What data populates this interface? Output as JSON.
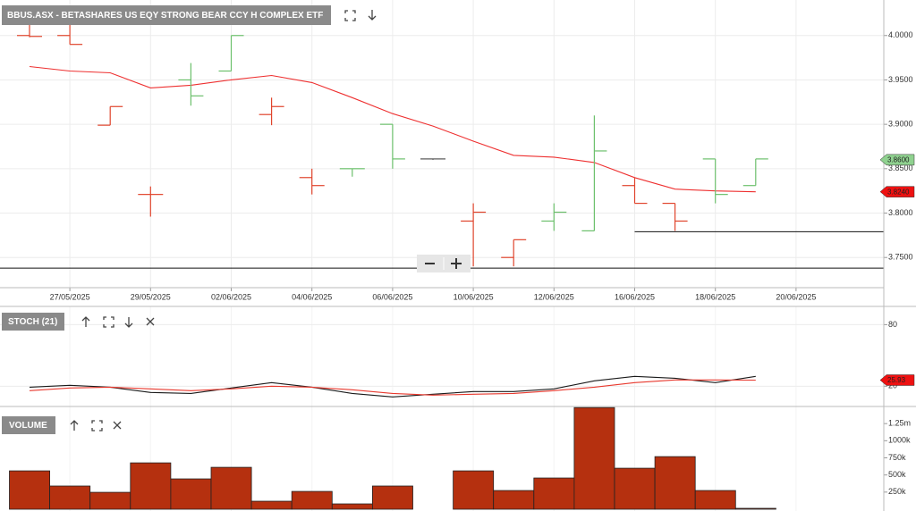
{
  "chart_data": [
    {
      "type": "ohlc",
      "title": "BBUS.ASX - BETASHARES US EQY STRONG BEAR CCY H COMPLEX ETF",
      "categories": [
        null,
        "27/05/2025",
        null,
        "29/05/2025",
        null,
        "02/06/2025",
        null,
        "04/06/2025",
        null,
        "06/06/2025",
        null,
        "10/06/2025",
        null,
        "12/06/2025",
        null,
        "16/06/2025",
        null,
        "18/06/2025",
        null,
        "20/06/2025"
      ],
      "open": [
        4.0,
        4.0,
        3.899,
        3.821,
        3.95,
        3.96,
        3.911,
        3.84,
        3.85,
        3.9,
        3.861,
        3.791,
        3.75,
        3.791,
        3.78,
        3.831,
        3.811,
        3.861,
        3.831,
        null
      ],
      "high": [
        4.012,
        4.012,
        3.92,
        3.83,
        3.969,
        4.0,
        3.93,
        3.85,
        3.85,
        3.9,
        3.861,
        3.811,
        3.77,
        3.811,
        3.91,
        3.84,
        3.811,
        3.861,
        3.861,
        null
      ],
      "low": [
        3.998,
        3.99,
        3.899,
        3.796,
        3.921,
        3.96,
        3.899,
        3.821,
        3.841,
        3.85,
        3.861,
        3.74,
        3.74,
        3.78,
        3.78,
        3.811,
        3.78,
        3.811,
        3.831,
        null
      ],
      "close": [
        3.999,
        3.99,
        3.92,
        3.821,
        3.932,
        4.0,
        3.92,
        3.831,
        3.85,
        3.861,
        3.861,
        3.801,
        3.77,
        3.801,
        3.87,
        3.811,
        3.791,
        3.821,
        3.861,
        null
      ],
      "up_color": "#6cc06c",
      "down_color": "#e0442c",
      "flat_color": "#555555",
      "overlays": [
        {
          "color": "#ee3030",
          "values": [
            3.965,
            3.96,
            3.958,
            3.941,
            3.944,
            3.95,
            3.955,
            3.947,
            3.93,
            3.912,
            3.898,
            3.881,
            3.865,
            3.863,
            3.857,
            3.84,
            3.827,
            3.825,
            3.824,
            null
          ]
        }
      ],
      "hlines": [
        {
          "value": 3.738
        },
        {
          "value": 3.779,
          "from": "16/06/2025"
        }
      ],
      "price_tags": [
        {
          "value": 3.86,
          "label": "3.8600",
          "color": "#8fd18f"
        },
        {
          "value": 3.824,
          "label": "3.8240",
          "color": "#ee1111"
        }
      ],
      "ylim": [
        3.716,
        4.04
      ],
      "yticks": [
        {
          "value": 4.0,
          "label": "4.0000"
        },
        {
          "value": 3.95,
          "label": "3.9500"
        },
        {
          "value": 3.9,
          "label": "3.9000"
        },
        {
          "value": 3.85,
          "label": "3.8500"
        },
        {
          "value": 3.8,
          "label": "3.8000"
        },
        {
          "value": 3.75,
          "label": "3.7500"
        }
      ],
      "grid": true
    },
    {
      "type": "line",
      "title": "STOCH (21)",
      "series": [
        {
          "color": "#1a1a1a",
          "values": [
            19.1,
            20.9,
            19.1,
            13.9,
            13.0,
            18.3,
            23.5,
            19.1,
            13.0,
            9.6,
            12.2,
            14.8,
            14.8,
            17.4,
            25.2,
            29.6,
            27.8,
            23.5,
            29.6,
            null
          ]
        },
        {
          "color": "#e8392e",
          "values": [
            15.7,
            18.3,
            19.1,
            17.4,
            15.7,
            17.4,
            20.0,
            19.1,
            16.5,
            13.0,
            11.3,
            12.2,
            13.0,
            15.7,
            19.1,
            23.5,
            26.1,
            26.1,
            25.93,
            null
          ]
        }
      ],
      "price_tags": [
        {
          "value": 25.93,
          "color": "#ee1111"
        }
      ],
      "ylim": [
        2,
        96
      ],
      "yticks": [
        80,
        20
      ],
      "grid": true
    },
    {
      "type": "bar",
      "title": "VOLUME",
      "values": [
        560000,
        339000,
        247000,
        677000,
        443000,
        612000,
        117000,
        260000,
        78000,
        339000,
        null,
        560000,
        273000,
        456000,
        1484000,
        599000,
        768000,
        273000,
        13000,
        null
      ],
      "color": "#b5300f",
      "ylim": [
        0,
        1500000
      ],
      "yticks": [
        {
          "value": 1250000,
          "label": "1.25m"
        },
        {
          "value": 1000000,
          "label": "1000k"
        },
        {
          "value": 750000,
          "label": "750k"
        },
        {
          "value": 500000,
          "label": "500k"
        },
        {
          "value": 250000,
          "label": "250k"
        }
      ],
      "grid": false
    }
  ]
}
